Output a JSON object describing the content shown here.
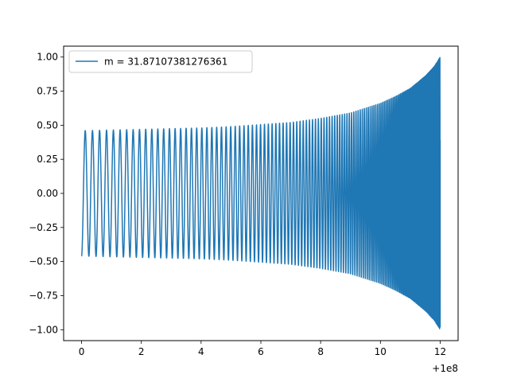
{
  "chart_data": {
    "type": "line",
    "title": "",
    "xlabel": "",
    "ylabel": "",
    "x_offset_label": "+1e8",
    "xlim": [
      -0.6,
      12.6
    ],
    "ylim": [
      -1.08,
      1.08
    ],
    "x_ticks": [
      0,
      2,
      4,
      6,
      8,
      10,
      12
    ],
    "x_tick_labels": [
      "0",
      "2",
      "4",
      "6",
      "8",
      "10",
      "12"
    ],
    "y_ticks": [
      -1.0,
      -0.75,
      -0.5,
      -0.25,
      0.0,
      0.25,
      0.5,
      0.75,
      1.0
    ],
    "y_tick_labels": [
      "−1.00",
      "−0.75",
      "−0.50",
      "−0.25",
      "0.00",
      "0.25",
      "0.50",
      "0.75",
      "1.00"
    ],
    "grid": false,
    "legend_position": "upper-left",
    "color": "#1f77b4",
    "series": [
      {
        "name": "m = 31.87107381276361",
        "description": "chirp-like oscillation, x from 0 to 12 (offset +1e8)",
        "envelope_x": [
          0,
          1,
          2,
          3,
          4,
          5,
          6,
          7,
          8,
          9,
          10,
          10.5,
          11,
          11.5,
          11.8,
          12
        ],
        "envelope_amplitude": [
          0.46,
          0.465,
          0.47,
          0.475,
          0.48,
          0.49,
          0.505,
          0.52,
          0.55,
          0.59,
          0.66,
          0.71,
          0.77,
          0.86,
          0.93,
          1.0
        ],
        "start_value": -0.46,
        "end_value": 0.39
      }
    ]
  }
}
